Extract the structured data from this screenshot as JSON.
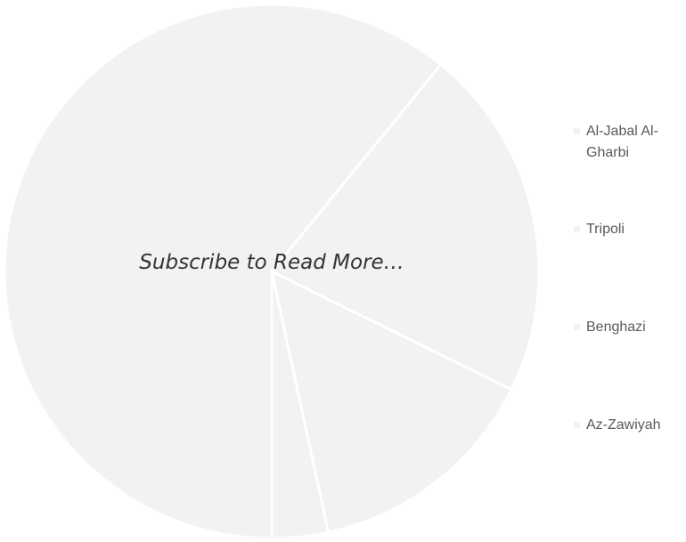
{
  "chart_data": {
    "type": "pie",
    "overlay_text": "Subscribe to Read More…",
    "categories": [
      "Al-Jabal Al-Gharbi",
      "Tripoli",
      "Benghazi",
      "Az-Zawiyah"
    ],
    "values": [
      60.9,
      21.4,
      14.3,
      3.4
    ],
    "colors": [
      "#f2f2f2",
      "#f2f2f2",
      "#f2f2f2",
      "#f2f2f2"
    ],
    "legend": "right"
  }
}
